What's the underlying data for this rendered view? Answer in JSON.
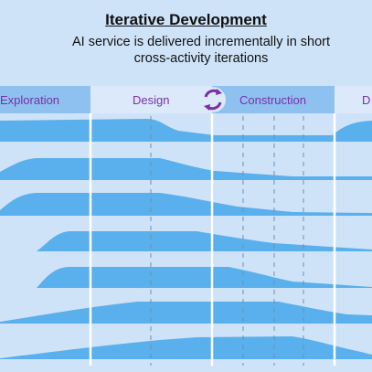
{
  "header": {
    "title": "Iterative Development",
    "subtitle_line1": "AI service is delivered incrementally in short",
    "subtitle_line2": "cross-activity iterations"
  },
  "phases": [
    {
      "label": "Exploration"
    },
    {
      "label": "Design"
    },
    {
      "label": "Construction"
    },
    {
      "label": "D"
    }
  ],
  "icons": {
    "phase_cycle": "cycle-arrows-icon"
  },
  "colors": {
    "background": "#cfe3f8",
    "wave_fill": "#59b0ec",
    "phase_text": "#7b2fa8",
    "divider": "#ffffff",
    "dash": "#6f8fb0"
  }
}
